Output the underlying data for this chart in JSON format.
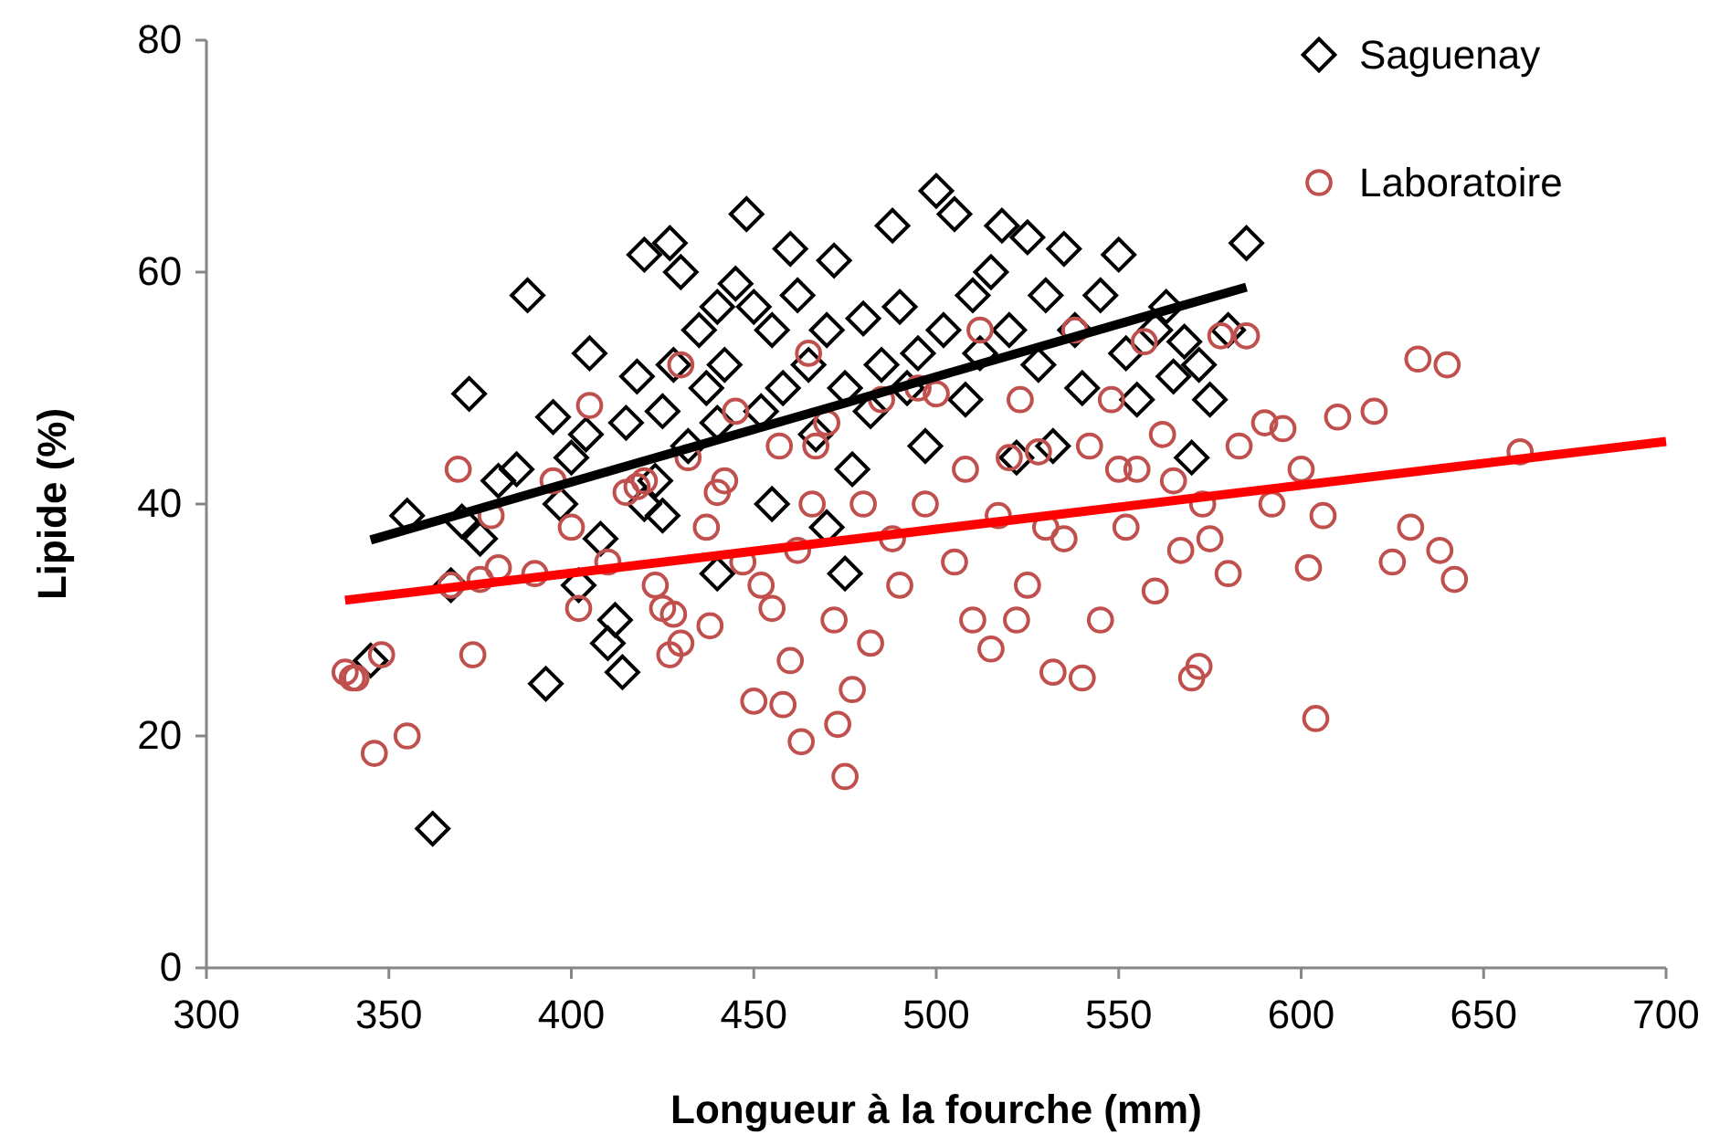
{
  "chart_data": {
    "type": "scatter",
    "xlabel": "Longueur  à la fourche (mm)",
    "ylabel": "Lipide (%)",
    "xlim": [
      300,
      700
    ],
    "xticks": [
      300,
      350,
      400,
      450,
      500,
      550,
      600,
      650,
      700
    ],
    "ylim": [
      0,
      80
    ],
    "yticks": [
      0,
      20,
      40,
      60,
      80
    ],
    "grid": false,
    "legend": "top right",
    "series": [
      {
        "name": "Saguenay",
        "marker": "diamond",
        "color": "#000000",
        "x": [
          345,
          355,
          362,
          367,
          370,
          372,
          375,
          380,
          388,
          393,
          395,
          397,
          400,
          402,
          404,
          405,
          408,
          410,
          412,
          414,
          415,
          418,
          420,
          420,
          423,
          425,
          427,
          428,
          430,
          432,
          435,
          437,
          440,
          440,
          442,
          445,
          448,
          450,
          452,
          455,
          458,
          460,
          462,
          465,
          467,
          470,
          472,
          475,
          477,
          480,
          482,
          485,
          488,
          490,
          492,
          495,
          497,
          500,
          502,
          505,
          508,
          510,
          512,
          515,
          518,
          520,
          522,
          525,
          528,
          530,
          532,
          535,
          538,
          540,
          545,
          550,
          552,
          555,
          560,
          563,
          565,
          568,
          570,
          572,
          575,
          580,
          585,
          475,
          440,
          425,
          455,
          385,
          470
        ],
        "values": [
          26.5,
          39,
          12,
          33,
          38.5,
          49.5,
          37,
          42,
          58,
          24.5,
          47.5,
          40,
          44,
          33,
          46,
          53,
          37,
          28,
          30,
          25.5,
          47,
          51,
          40,
          61.5,
          42,
          48,
          62.5,
          52,
          60,
          45,
          55,
          50,
          57,
          47,
          52,
          59,
          65,
          57,
          48,
          55,
          50,
          62,
          58,
          52,
          46,
          55,
          61,
          50,
          43,
          56,
          48,
          52,
          64,
          57,
          50,
          53,
          45,
          67,
          55,
          65,
          49,
          58,
          53,
          60,
          64,
          55,
          44,
          63,
          52,
          58,
          45,
          62,
          55,
          50,
          58,
          61.5,
          53,
          49,
          55,
          57,
          51,
          54,
          44,
          52,
          49,
          55,
          62.5,
          34,
          34,
          39,
          40,
          43,
          38
        ]
      },
      {
        "name": "Laboratoire",
        "marker": "circle",
        "color": "#c0504d",
        "x": [
          338,
          341,
          346,
          348,
          355,
          367,
          369,
          373,
          375,
          378,
          380,
          390,
          400,
          402,
          405,
          410,
          418,
          420,
          423,
          425,
          427,
          428,
          430,
          432,
          437,
          438,
          440,
          442,
          445,
          447,
          450,
          452,
          455,
          457,
          458,
          460,
          462,
          463,
          465,
          466,
          467,
          470,
          472,
          473,
          475,
          477,
          480,
          482,
          485,
          488,
          490,
          495,
          497,
          500,
          505,
          508,
          510,
          512,
          515,
          517,
          520,
          522,
          523,
          525,
          528,
          530,
          532,
          535,
          538,
          540,
          542,
          545,
          548,
          550,
          552,
          555,
          557,
          560,
          562,
          565,
          567,
          570,
          572,
          573,
          575,
          578,
          580,
          583,
          585,
          590,
          592,
          595,
          600,
          602,
          604,
          606,
          610,
          620,
          625,
          630,
          632,
          638,
          640,
          642,
          660,
          340,
          395,
          415,
          430
        ],
        "values": [
          25.5,
          25,
          18.5,
          27,
          20,
          33,
          43,
          27,
          33.5,
          39,
          34.5,
          34,
          38,
          31,
          48.5,
          35,
          41.5,
          42,
          33,
          31,
          27,
          30.5,
          28,
          44,
          38,
          29.5,
          41,
          42,
          48,
          35,
          23,
          33,
          31,
          45,
          22.7,
          26.5,
          36,
          19.5,
          53,
          40,
          45,
          47,
          30,
          21,
          16.5,
          24,
          40,
          28,
          49,
          37,
          33,
          50,
          40,
          49.5,
          35,
          43,
          30,
          55,
          27.5,
          39,
          44,
          30,
          49,
          33,
          44.5,
          38,
          25.5,
          37,
          55,
          25,
          45,
          30,
          49,
          43,
          38,
          43,
          54,
          32.5,
          46,
          42,
          36,
          25,
          26,
          40,
          37,
          54.5,
          34,
          45,
          54.5,
          47,
          40,
          46.5,
          43,
          34.5,
          21.5,
          39,
          47.5,
          48,
          35,
          38,
          52.5,
          36,
          52,
          33.5,
          44.5,
          25,
          42,
          41,
          52
        ]
      },
      {
        "type": "line",
        "marker": "none",
        "color": "#000000",
        "x": [
          345,
          585
        ],
        "values": [
          36.9,
          58.7
        ]
      },
      {
        "type": "line",
        "marker": "none",
        "color": "#ff0000",
        "x": [
          338,
          700
        ],
        "values": [
          31.7,
          45.4
        ]
      }
    ]
  }
}
